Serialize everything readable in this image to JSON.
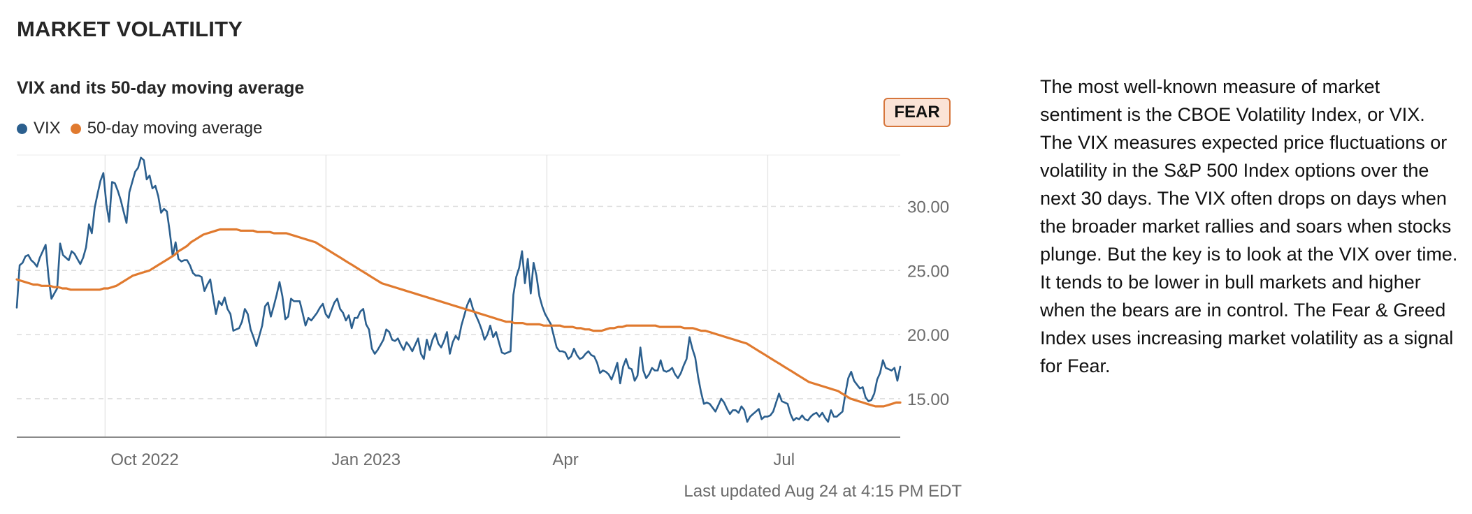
{
  "section_title": "MARKET VOLATILITY",
  "badge": {
    "label": "FEAR",
    "fill": "#fbe3d6",
    "border": "#d6763c"
  },
  "last_updated": "Last updated Aug 24 at 4:15 PM EDT",
  "description": "The most well-known measure of market sentiment is the CBOE Volatility Index, or VIX. The VIX measures expected price fluctuations or volatility in the S&P 500 Index options over the next 30 days. The VIX often drops on days when the broader market rallies and soars when stocks plunge. But the key is to look at the VIX over time. It tends to be lower in bull markets and higher when the bears are in control. The Fear & Greed Index uses increasing market volatility as a signal for Fear.",
  "chart_data": {
    "type": "line",
    "title": "VIX and its 50-day moving average",
    "x_ticks": [
      "Oct 2022",
      "Jan 2023",
      "Apr",
      "Jul"
    ],
    "x_tick_positions": [
      0.1,
      0.35,
      0.6,
      0.85
    ],
    "yticks": [
      "15.00",
      "20.00",
      "25.00",
      "30.00"
    ],
    "ytick_values": [
      15,
      20,
      25,
      30
    ],
    "ylim": [
      12,
      34
    ],
    "y_axis_side": "right",
    "grid": true,
    "legend_position": "top-left",
    "series": [
      {
        "name": "VIX",
        "color": "#2b5f8e",
        "values": [
          22.1,
          25.4,
          25.6,
          26.1,
          26.2,
          25.8,
          25.6,
          25.3,
          26.0,
          26.5,
          27.0,
          24.5,
          22.8,
          23.2,
          23.6,
          27.1,
          26.2,
          26.0,
          25.8,
          26.5,
          26.3,
          25.9,
          25.5,
          26.0,
          26.8,
          28.6,
          27.9,
          29.9,
          31.0,
          32.0,
          32.6,
          30.2,
          28.8,
          31.9,
          31.8,
          31.2,
          30.5,
          29.6,
          28.7,
          31.1,
          31.9,
          32.7,
          33.0,
          33.8,
          33.6,
          32.1,
          32.4,
          31.4,
          31.6,
          30.8,
          29.5,
          29.8,
          29.6,
          28.0,
          26.1,
          27.2,
          25.9,
          25.7,
          25.8,
          25.8,
          25.4,
          24.8,
          24.6,
          24.6,
          24.5,
          23.4,
          23.9,
          24.3,
          22.9,
          21.6,
          22.6,
          22.3,
          22.9,
          22.0,
          21.6,
          20.3,
          20.4,
          20.5,
          21.0,
          22.0,
          21.6,
          20.4,
          19.8,
          19.1,
          19.9,
          20.7,
          22.2,
          22.5,
          21.4,
          22.2,
          23.1,
          24.1,
          23.0,
          21.2,
          21.4,
          22.8,
          22.6,
          22.6,
          22.6,
          21.7,
          20.7,
          21.3,
          21.1,
          21.4,
          21.7,
          22.1,
          22.4,
          21.6,
          21.3,
          21.9,
          22.5,
          22.8,
          22.0,
          21.7,
          21.1,
          21.5,
          20.5,
          21.3,
          21.3,
          21.8,
          22.0,
          20.8,
          20.4,
          18.9,
          18.5,
          18.8,
          19.2,
          19.6,
          20.4,
          20.2,
          19.6,
          19.5,
          19.7,
          19.2,
          18.8,
          19.4,
          19.1,
          18.7,
          19.2,
          19.7,
          18.5,
          18.1,
          19.6,
          18.8,
          19.6,
          20.1,
          19.3,
          19.0,
          19.5,
          20.2,
          18.5,
          19.4,
          19.9,
          19.6,
          20.7,
          21.5,
          22.3,
          22.8,
          22.0,
          21.5,
          21.0,
          20.4,
          19.6,
          20.0,
          20.7,
          19.8,
          20.2,
          19.4,
          18.6,
          18.5,
          18.6,
          18.7,
          23.1,
          24.5,
          25.2,
          26.5,
          24.0,
          25.9,
          23.2,
          25.6,
          24.6,
          23.0,
          22.2,
          21.6,
          21.2,
          20.8,
          19.9,
          19.0,
          18.7,
          18.7,
          18.6,
          18.1,
          18.3,
          18.9,
          18.4,
          18.1,
          18.2,
          18.5,
          18.7,
          18.4,
          18.3,
          17.8,
          17.0,
          17.2,
          17.1,
          16.9,
          16.5,
          17.1,
          17.8,
          16.2,
          17.5,
          18.1,
          17.4,
          17.3,
          16.4,
          16.8,
          19.0,
          17.2,
          16.6,
          16.9,
          17.4,
          17.2,
          17.2,
          18.0,
          17.2,
          17.1,
          17.2,
          17.4,
          16.9,
          16.6,
          17.0,
          17.6,
          18.1,
          19.8,
          18.9,
          18.2,
          16.7,
          15.5,
          14.6,
          14.7,
          14.6,
          14.3,
          14.0,
          14.5,
          15.0,
          14.7,
          14.2,
          13.8,
          14.1,
          14.1,
          13.9,
          14.4,
          14.1,
          13.2,
          13.6,
          13.8,
          14.0,
          14.2,
          13.4,
          13.6,
          13.6,
          13.7,
          14.0,
          14.7,
          15.4,
          14.8,
          14.7,
          14.6,
          13.8,
          13.3,
          13.5,
          13.4,
          13.7,
          13.4,
          13.3,
          13.6,
          13.8,
          13.9,
          13.6,
          13.9,
          13.5,
          13.2,
          14.1,
          13.6,
          13.6,
          13.8,
          14.0,
          15.4,
          16.6,
          17.1,
          16.4,
          16.1,
          15.8,
          15.9,
          15.1,
          14.8,
          14.9,
          15.4,
          16.5,
          17.0,
          18.0,
          17.4,
          17.3,
          17.2,
          17.4,
          16.4,
          17.5
        ]
      },
      {
        "name": "50-day moving average",
        "color": "#e07a2f",
        "values": [
          24.3,
          24.2,
          24.1,
          24.0,
          23.9,
          23.9,
          23.8,
          23.8,
          23.8,
          23.7,
          23.7,
          23.6,
          23.6,
          23.5,
          23.5,
          23.5,
          23.5,
          23.5,
          23.5,
          23.5,
          23.5,
          23.6,
          23.6,
          23.7,
          23.8,
          24.0,
          24.2,
          24.4,
          24.6,
          24.7,
          24.8,
          24.9,
          25.0,
          25.2,
          25.4,
          25.6,
          25.8,
          26.0,
          26.2,
          26.5,
          26.7,
          26.9,
          27.2,
          27.4,
          27.6,
          27.8,
          27.9,
          28.0,
          28.1,
          28.2,
          28.2,
          28.2,
          28.2,
          28.2,
          28.1,
          28.1,
          28.1,
          28.1,
          28.0,
          28.0,
          28.0,
          28.0,
          27.9,
          27.9,
          27.9,
          27.9,
          27.8,
          27.7,
          27.6,
          27.5,
          27.4,
          27.3,
          27.2,
          27.0,
          26.8,
          26.6,
          26.4,
          26.2,
          26.0,
          25.8,
          25.6,
          25.4,
          25.2,
          25.0,
          24.8,
          24.6,
          24.4,
          24.2,
          24.0,
          23.9,
          23.8,
          23.7,
          23.6,
          23.5,
          23.4,
          23.3,
          23.2,
          23.1,
          23.0,
          22.9,
          22.8,
          22.7,
          22.6,
          22.5,
          22.4,
          22.3,
          22.2,
          22.1,
          22.0,
          21.9,
          21.8,
          21.7,
          21.6,
          21.5,
          21.4,
          21.3,
          21.2,
          21.1,
          21.0,
          21.0,
          20.9,
          20.9,
          20.9,
          20.8,
          20.8,
          20.8,
          20.8,
          20.7,
          20.7,
          20.7,
          20.7,
          20.7,
          20.6,
          20.6,
          20.6,
          20.5,
          20.5,
          20.4,
          20.4,
          20.3,
          20.3,
          20.3,
          20.4,
          20.5,
          20.5,
          20.6,
          20.6,
          20.7,
          20.7,
          20.7,
          20.7,
          20.7,
          20.7,
          20.7,
          20.7,
          20.6,
          20.6,
          20.6,
          20.6,
          20.6,
          20.6,
          20.5,
          20.5,
          20.5,
          20.4,
          20.3,
          20.3,
          20.2,
          20.1,
          20.0,
          19.9,
          19.8,
          19.7,
          19.6,
          19.5,
          19.4,
          19.3,
          19.1,
          18.9,
          18.7,
          18.5,
          18.3,
          18.1,
          17.9,
          17.7,
          17.5,
          17.3,
          17.1,
          16.9,
          16.7,
          16.5,
          16.3,
          16.2,
          16.1,
          16.0,
          15.9,
          15.8,
          15.7,
          15.6,
          15.4,
          15.2,
          15.0,
          14.9,
          14.8,
          14.7,
          14.6,
          14.5,
          14.4,
          14.4,
          14.4,
          14.5,
          14.6,
          14.7,
          14.7
        ]
      }
    ]
  }
}
